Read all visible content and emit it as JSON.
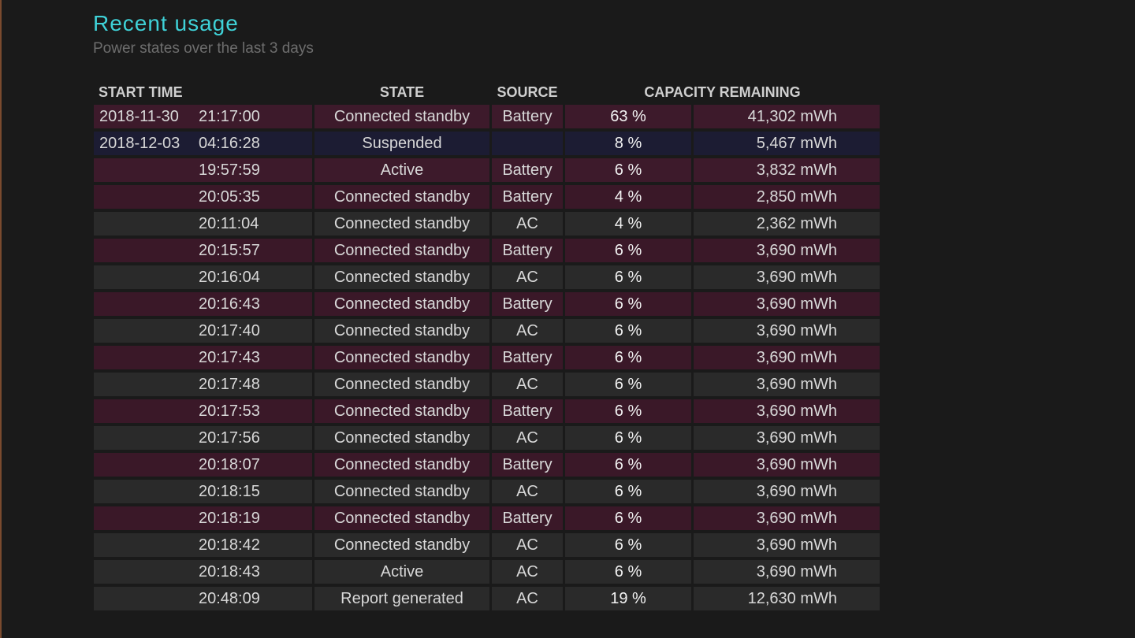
{
  "header": {
    "title": "Recent usage",
    "subtitle": "Power states over the last 3 days"
  },
  "table": {
    "columns": {
      "start_time": "START TIME",
      "state": "STATE",
      "source": "SOURCE",
      "capacity_remaining": "CAPACITY REMAINING"
    },
    "rows": [
      {
        "date": "2018-11-30",
        "time": "21:17:00",
        "state": "Connected standby",
        "source": "Battery",
        "percent": "63 %",
        "energy": "41,302 mWh"
      },
      {
        "date": "2018-12-03",
        "time": "04:16:28",
        "state": "Suspended",
        "source": "",
        "percent": "8 %",
        "energy": "5,467 mWh"
      },
      {
        "date": "",
        "time": "19:57:59",
        "state": "Active",
        "source": "Battery",
        "percent": "6 %",
        "energy": "3,832 mWh"
      },
      {
        "date": "",
        "time": "20:05:35",
        "state": "Connected standby",
        "source": "Battery",
        "percent": "4 %",
        "energy": "2,850 mWh"
      },
      {
        "date": "",
        "time": "20:11:04",
        "state": "Connected standby",
        "source": "AC",
        "percent": "4 %",
        "energy": "2,362 mWh"
      },
      {
        "date": "",
        "time": "20:15:57",
        "state": "Connected standby",
        "source": "Battery",
        "percent": "6 %",
        "energy": "3,690 mWh"
      },
      {
        "date": "",
        "time": "20:16:04",
        "state": "Connected standby",
        "source": "AC",
        "percent": "6 %",
        "energy": "3,690 mWh"
      },
      {
        "date": "",
        "time": "20:16:43",
        "state": "Connected standby",
        "source": "Battery",
        "percent": "6 %",
        "energy": "3,690 mWh"
      },
      {
        "date": "",
        "time": "20:17:40",
        "state": "Connected standby",
        "source": "AC",
        "percent": "6 %",
        "energy": "3,690 mWh"
      },
      {
        "date": "",
        "time": "20:17:43",
        "state": "Connected standby",
        "source": "Battery",
        "percent": "6 %",
        "energy": "3,690 mWh"
      },
      {
        "date": "",
        "time": "20:17:48",
        "state": "Connected standby",
        "source": "AC",
        "percent": "6 %",
        "energy": "3,690 mWh"
      },
      {
        "date": "",
        "time": "20:17:53",
        "state": "Connected standby",
        "source": "Battery",
        "percent": "6 %",
        "energy": "3,690 mWh"
      },
      {
        "date": "",
        "time": "20:17:56",
        "state": "Connected standby",
        "source": "AC",
        "percent": "6 %",
        "energy": "3,690 mWh"
      },
      {
        "date": "",
        "time": "20:18:07",
        "state": "Connected standby",
        "source": "Battery",
        "percent": "6 %",
        "energy": "3,690 mWh"
      },
      {
        "date": "",
        "time": "20:18:15",
        "state": "Connected standby",
        "source": "AC",
        "percent": "6 %",
        "energy": "3,690 mWh"
      },
      {
        "date": "",
        "time": "20:18:19",
        "state": "Connected standby",
        "source": "Battery",
        "percent": "6 %",
        "energy": "3,690 mWh"
      },
      {
        "date": "",
        "time": "20:18:42",
        "state": "Connected standby",
        "source": "AC",
        "percent": "6 %",
        "energy": "3,690 mWh"
      },
      {
        "date": "",
        "time": "20:18:43",
        "state": "Active",
        "source": "AC",
        "percent": "6 %",
        "energy": "3,690 mWh"
      },
      {
        "date": "",
        "time": "20:48:09",
        "state": "Report generated",
        "source": "AC",
        "percent": "19 %",
        "energy": "12,630 mWh"
      }
    ]
  },
  "colors": {
    "title": "#3fd2d8",
    "battery_row": "#3a1828",
    "ac_row": "#2a2a2a",
    "suspended_row": "#1c1c33",
    "background": "#1a1a1a"
  }
}
